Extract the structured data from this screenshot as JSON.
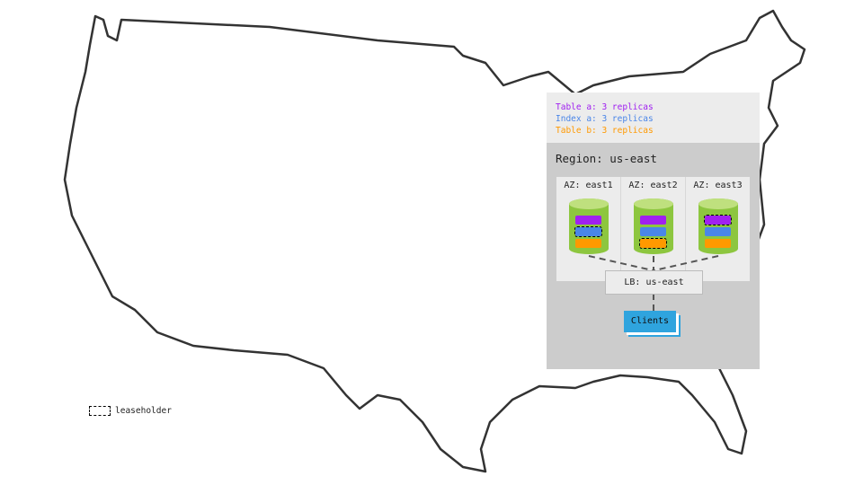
{
  "legend": {
    "items": [
      {
        "label": "Table a: 3 replicas",
        "color": "#a020f0"
      },
      {
        "label": "Index a: 3 replicas",
        "color": "#4a86e8"
      },
      {
        "label": "Table b: 3 replicas",
        "color": "#ff9900"
      }
    ]
  },
  "region": {
    "title": "Region: us-east",
    "zones": [
      {
        "label": "AZ: east1",
        "leaseholder": "index-a"
      },
      {
        "label": "AZ: east2",
        "leaseholder": "table-b"
      },
      {
        "label": "AZ: east3",
        "leaseholder": "table-a"
      }
    ],
    "load_balancer": "LB: us-east",
    "clients": "Clients"
  },
  "leaseholder_legend": "leaseholder",
  "colors": {
    "node": "#8dc63f",
    "clients": "#2fa4de",
    "region": "#cccccc"
  }
}
